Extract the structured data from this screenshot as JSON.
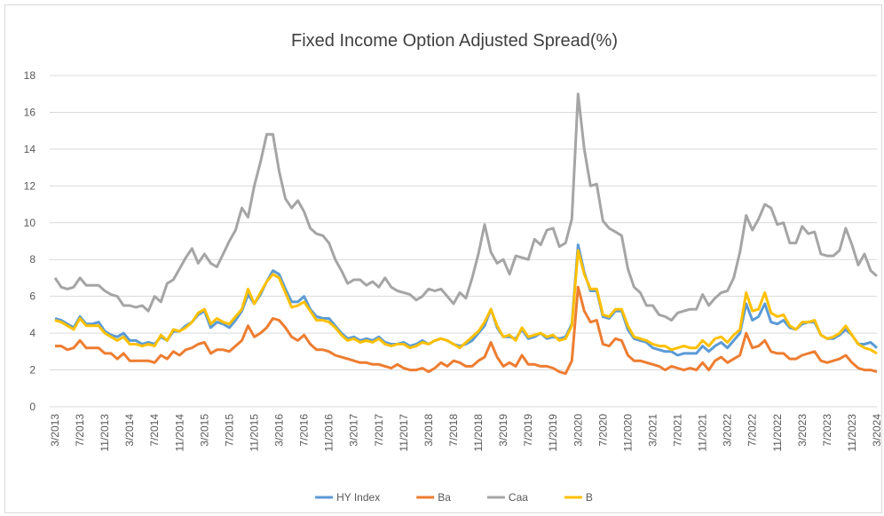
{
  "chart_data": {
    "type": "line",
    "title": "Fixed Income Option Adjusted Spread(%)",
    "categories": [
      "3/2013",
      null,
      null,
      null,
      "7/2013",
      null,
      null,
      null,
      "11/2013",
      null,
      null,
      null,
      "3/2014",
      null,
      null,
      null,
      "7/2014",
      null,
      null,
      null,
      "11/2014",
      null,
      null,
      null,
      "3/2015",
      null,
      null,
      null,
      "7/2015",
      null,
      null,
      null,
      "11/2015",
      null,
      null,
      null,
      "3/2016",
      null,
      null,
      null,
      "7/2016",
      null,
      null,
      null,
      "11/2016",
      null,
      null,
      null,
      "3/2017",
      null,
      null,
      null,
      "7/2017",
      null,
      null,
      null,
      "11/2017",
      null,
      null,
      null,
      "3/2018",
      null,
      null,
      null,
      "7/2018",
      null,
      null,
      null,
      "11/2018",
      null,
      null,
      null,
      "3/2019",
      null,
      null,
      null,
      "7/2019",
      null,
      null,
      null,
      "11/2019",
      null,
      null,
      null,
      "3/2020",
      null,
      null,
      null,
      "7/2020",
      null,
      null,
      null,
      "11/2020",
      null,
      null,
      null,
      "3/2021",
      null,
      null,
      null,
      "7/2021",
      null,
      null,
      null,
      "11/2021",
      null,
      null,
      null,
      "3/2022",
      null,
      null,
      null,
      "7/2022",
      null,
      null,
      null,
      "11/2022",
      null,
      null,
      null,
      "3/2023",
      null,
      null,
      null,
      "7/2023",
      null,
      null,
      null,
      "11/2023",
      null,
      null,
      null,
      "3/2024"
    ],
    "series": [
      {
        "name": "HY Index",
        "color": "#5b9bd5",
        "values": [
          4.8,
          4.7,
          4.5,
          4.3,
          4.9,
          4.5,
          4.5,
          4.6,
          4.1,
          3.9,
          3.8,
          4.0,
          3.6,
          3.6,
          3.4,
          3.5,
          3.4,
          3.8,
          3.6,
          4.1,
          4.1,
          4.4,
          4.6,
          5.0,
          5.2,
          4.3,
          4.6,
          4.5,
          4.3,
          4.7,
          5.2,
          6.1,
          5.6,
          6.1,
          6.8,
          7.4,
          7.2,
          6.4,
          5.7,
          5.7,
          6.0,
          5.3,
          4.9,
          4.8,
          4.8,
          4.4,
          4.0,
          3.7,
          3.8,
          3.6,
          3.7,
          3.6,
          3.8,
          3.5,
          3.4,
          3.4,
          3.5,
          3.3,
          3.4,
          3.6,
          3.4,
          3.6,
          3.7,
          3.6,
          3.4,
          3.3,
          3.4,
          3.6,
          4.0,
          4.4,
          5.3,
          4.3,
          3.8,
          3.8,
          3.7,
          4.2,
          3.7,
          3.8,
          4.0,
          3.7,
          3.8,
          3.7,
          3.8,
          4.5,
          8.8,
          7.3,
          6.3,
          6.3,
          4.9,
          4.8,
          5.2,
          5.2,
          4.2,
          3.7,
          3.6,
          3.5,
          3.2,
          3.1,
          3.0,
          3.0,
          2.8,
          2.9,
          2.9,
          2.9,
          3.3,
          3.0,
          3.3,
          3.5,
          3.2,
          3.6,
          4.0,
          5.6,
          4.7,
          4.9,
          5.6,
          4.6,
          4.5,
          4.7,
          4.3,
          4.2,
          4.5,
          4.6,
          4.6,
          3.9,
          3.7,
          3.7,
          3.9,
          4.2,
          3.9,
          3.4,
          3.4,
          3.5,
          3.2
        ]
      },
      {
        "name": "Ba",
        "color": "#ed7d31",
        "values": [
          3.3,
          3.3,
          3.1,
          3.2,
          3.6,
          3.2,
          3.2,
          3.2,
          2.9,
          2.9,
          2.6,
          2.9,
          2.5,
          2.5,
          2.5,
          2.5,
          2.4,
          2.8,
          2.6,
          3.0,
          2.8,
          3.1,
          3.2,
          3.4,
          3.5,
          2.9,
          3.1,
          3.1,
          3.0,
          3.3,
          3.6,
          4.4,
          3.8,
          4.0,
          4.3,
          4.8,
          4.7,
          4.3,
          3.8,
          3.6,
          3.9,
          3.4,
          3.1,
          3.1,
          3.0,
          2.8,
          2.7,
          2.6,
          2.5,
          2.4,
          2.4,
          2.3,
          2.3,
          2.2,
          2.1,
          2.3,
          2.1,
          2.0,
          2.0,
          2.1,
          1.9,
          2.1,
          2.4,
          2.2,
          2.5,
          2.4,
          2.2,
          2.2,
          2.5,
          2.7,
          3.5,
          2.7,
          2.2,
          2.4,
          2.2,
          2.8,
          2.3,
          2.3,
          2.2,
          2.2,
          2.1,
          1.9,
          1.8,
          2.5,
          6.5,
          5.2,
          4.6,
          4.7,
          3.4,
          3.3,
          3.7,
          3.6,
          2.8,
          2.5,
          2.5,
          2.4,
          2.3,
          2.2,
          2.0,
          2.2,
          2.1,
          2.0,
          2.1,
          2.0,
          2.4,
          2.0,
          2.5,
          2.7,
          2.4,
          2.6,
          2.8,
          4.0,
          3.2,
          3.3,
          3.6,
          3.0,
          2.9,
          2.9,
          2.6,
          2.6,
          2.8,
          2.9,
          3.0,
          2.5,
          2.4,
          2.5,
          2.6,
          2.8,
          2.4,
          2.1,
          2.0,
          2.0,
          1.9
        ]
      },
      {
        "name": "Caa",
        "color": "#a5a5a5",
        "values": [
          7.0,
          6.5,
          6.4,
          6.5,
          7.0,
          6.6,
          6.6,
          6.6,
          6.3,
          6.1,
          6.0,
          5.5,
          5.5,
          5.4,
          5.5,
          5.2,
          6.0,
          5.7,
          6.7,
          6.9,
          7.5,
          8.1,
          8.6,
          7.8,
          8.3,
          7.8,
          7.6,
          8.3,
          9.0,
          9.6,
          10.8,
          10.3,
          12.0,
          13.3,
          14.8,
          14.8,
          12.8,
          11.3,
          10.8,
          11.2,
          10.6,
          9.7,
          9.4,
          9.3,
          8.9,
          8.0,
          7.4,
          6.7,
          6.9,
          6.9,
          6.6,
          6.8,
          6.5,
          7.0,
          6.5,
          6.3,
          6.2,
          6.1,
          5.8,
          6.0,
          6.4,
          6.3,
          6.4,
          6.0,
          5.6,
          6.2,
          5.9,
          7.0,
          8.3,
          9.9,
          8.4,
          7.8,
          8.0,
          7.2,
          8.2,
          8.1,
          8.0,
          9.1,
          8.8,
          9.6,
          9.7,
          8.7,
          8.9,
          10.2,
          17.0,
          14.0,
          12.0,
          12.1,
          10.1,
          9.7,
          9.5,
          9.3,
          7.5,
          6.5,
          6.2,
          5.5,
          5.5,
          5.0,
          4.9,
          4.7,
          5.1,
          5.2,
          5.3,
          5.3,
          6.1,
          5.5,
          5.9,
          6.2,
          6.3,
          7.0,
          8.4,
          10.4,
          9.6,
          10.2,
          11.0,
          10.8,
          9.9,
          10.0,
          8.9,
          8.9,
          9.8,
          9.4,
          9.5,
          8.3,
          8.2,
          8.2,
          8.5,
          9.7,
          8.8,
          7.7,
          8.3,
          7.4,
          7.1
        ]
      },
      {
        "name": "B",
        "color": "#ffc000",
        "values": [
          4.7,
          4.6,
          4.4,
          4.2,
          4.8,
          4.4,
          4.4,
          4.4,
          4.0,
          3.8,
          3.6,
          3.8,
          3.4,
          3.4,
          3.3,
          3.4,
          3.3,
          3.9,
          3.6,
          4.2,
          4.1,
          4.3,
          4.6,
          5.1,
          5.3,
          4.5,
          4.8,
          4.6,
          4.5,
          4.9,
          5.3,
          6.4,
          5.6,
          6.2,
          6.8,
          7.2,
          7.0,
          6.2,
          5.4,
          5.5,
          5.7,
          5.2,
          4.7,
          4.7,
          4.6,
          4.3,
          3.9,
          3.6,
          3.7,
          3.5,
          3.6,
          3.5,
          3.7,
          3.4,
          3.3,
          3.4,
          3.4,
          3.2,
          3.3,
          3.5,
          3.4,
          3.6,
          3.7,
          3.6,
          3.4,
          3.2,
          3.5,
          3.8,
          4.1,
          4.6,
          5.3,
          4.4,
          3.8,
          3.9,
          3.6,
          4.3,
          3.8,
          3.9,
          4.0,
          3.8,
          3.9,
          3.6,
          3.7,
          4.4,
          8.5,
          7.2,
          6.4,
          6.4,
          5.0,
          4.9,
          5.3,
          5.3,
          4.4,
          3.8,
          3.7,
          3.6,
          3.4,
          3.3,
          3.3,
          3.1,
          3.2,
          3.3,
          3.2,
          3.2,
          3.6,
          3.3,
          3.7,
          3.8,
          3.5,
          3.9,
          4.2,
          6.2,
          5.2,
          5.3,
          6.2,
          5.1,
          4.9,
          5.0,
          4.4,
          4.2,
          4.6,
          4.6,
          4.7,
          3.9,
          3.7,
          3.8,
          4.0,
          4.4,
          3.9,
          3.4,
          3.2,
          3.1,
          2.9
        ]
      }
    ],
    "ylim": [
      0,
      18
    ],
    "yticks": [
      0,
      2,
      4,
      6,
      8,
      10,
      12,
      14,
      16,
      18
    ],
    "grid": true,
    "legend": "bottom"
  }
}
